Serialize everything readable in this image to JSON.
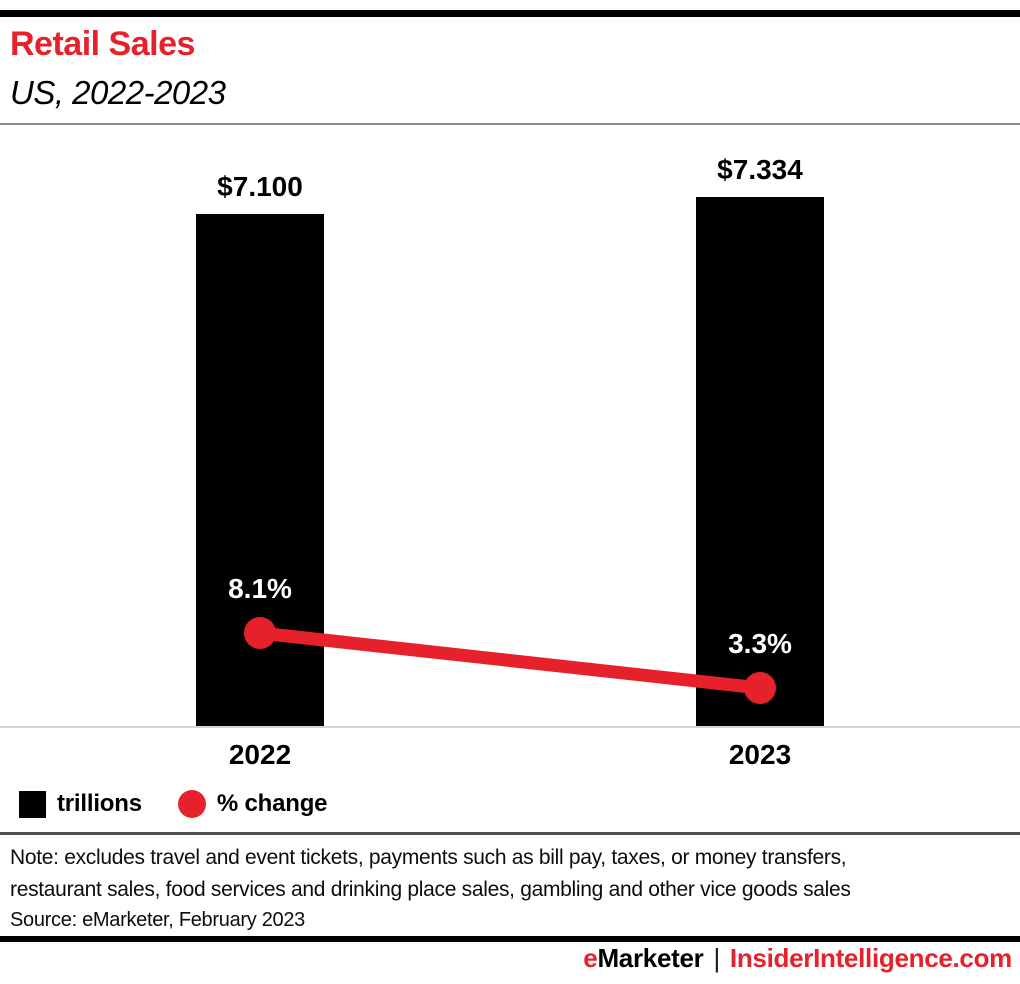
{
  "header": {
    "title": "Retail Sales",
    "subtitle": "US, 2022-2023"
  },
  "chart_data": {
    "type": "bar",
    "title": "Retail Sales",
    "subtitle": "US, 2022-2023",
    "categories": [
      "2022",
      "2023"
    ],
    "series": [
      {
        "name": "trillions",
        "type": "bar",
        "unit": "US$ trillions",
        "values": [
          7.1,
          7.334
        ],
        "labels": [
          "$7.100",
          "$7.334"
        ],
        "color": "#e7212b-placeholder-overridden-below",
        "bar_color": "#000000"
      },
      {
        "name": "% change",
        "type": "line",
        "unit": "percent",
        "values": [
          8.1,
          3.3
        ],
        "labels": [
          "8.1%",
          "3.3%"
        ],
        "line_color": "#e7212b"
      }
    ],
    "ylim": [
      0,
      7.334
    ],
    "grid": false,
    "legend_position": "bottom-left"
  },
  "legend": {
    "items": [
      {
        "label": "trillions",
        "swatch": "square",
        "color": "#000000"
      },
      {
        "label": "% change",
        "swatch": "circle",
        "color": "#e7212b"
      }
    ]
  },
  "notes": {
    "note_lines": [
      "Note: excludes travel and event tickets, payments such as bill pay, taxes, or money transfers,",
      "restaurant sales, food services and drinking place sales, gambling and other vice goods sales"
    ],
    "source": "Source: eMarketer, February 2023"
  },
  "footer": {
    "brand_e": "e",
    "brand_rest": "Marketer",
    "separator": "|",
    "site": "InsiderIntelligence.com"
  },
  "colors": {
    "accent_red": "#e7212b",
    "bar_black": "#000000",
    "baseline_line": "#cdd5e4",
    "header_divider": "#8c8c8c",
    "note_divider": "#4e4e4e",
    "top_bar": "#000000",
    "footer_bar": "#000000"
  }
}
